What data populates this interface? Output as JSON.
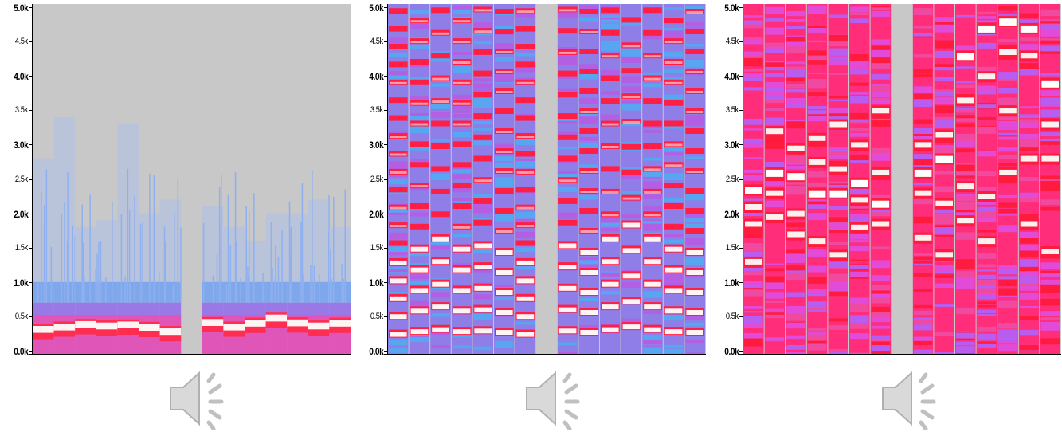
{
  "chart_data": [
    {
      "type": "heatmap",
      "ylim": [
        0,
        5000
      ],
      "y_ticks": [
        "5.0k",
        "4.5k",
        "4.0k",
        "3.5k",
        "3.0k",
        "2.5k",
        "2.0k",
        "1.5k",
        "1.0k",
        "0.5k",
        "0.0k"
      ],
      "major_ticks": [
        "5.0k",
        "4.0k",
        "3.0k",
        "2.0k",
        "1.0k",
        "0.0k"
      ],
      "background": "#c8c8c8",
      "segments": 15,
      "gap_segments": [
        7
      ],
      "energy_top_hz": [
        2800,
        3400,
        1800,
        1900,
        3300,
        2000,
        2200,
        0,
        2100,
        1800,
        1600,
        2000,
        2000,
        2200,
        1800
      ],
      "bands_hz": [
        [
          250,
          350
        ],
        [
          350,
          320
        ],
        [
          420,
          320
        ],
        [
          370,
          330
        ],
        [
          390,
          340
        ],
        [
          350,
          310
        ],
        [
          290,
          250
        ],
        [
          0,
          0
        ],
        [
          380,
          420
        ],
        [
          350,
          320
        ],
        [
          400,
          380
        ],
        [
          470,
          460
        ],
        [
          390,
          400
        ],
        [
          340,
          360
        ],
        [
          400,
          380
        ]
      ]
    },
    {
      "type": "heatmap",
      "ylim": [
        0,
        5000
      ],
      "y_ticks": [
        "5.0k",
        "4.5k",
        "4.0k",
        "3.5k",
        "3.0k",
        "2.5k",
        "2.0k",
        "1.5k",
        "1.0k",
        "0.5k",
        "0.0k"
      ],
      "major_ticks": [
        "5.0k",
        "4.0k",
        "3.0k",
        "2.0k",
        "1.0k",
        "0.0k"
      ],
      "background": "#c8c8c8",
      "segments": 15,
      "gap_segments": [
        7
      ],
      "harmonic_f0_hz": [
        260,
        300,
        330,
        300,
        310,
        290,
        260,
        0,
        310,
        290,
        330,
        370,
        330,
        300,
        290
      ],
      "harmonic_count": 5
    },
    {
      "type": "heatmap",
      "ylim": [
        0,
        5000
      ],
      "y_ticks": [
        "5.0k",
        "4.5k",
        "4.0k",
        "3.5k",
        "3.0k",
        "2.5k",
        "2.0k",
        "1.5k",
        "1.0k",
        "0.5k",
        "0.0k"
      ],
      "major_ticks": [
        "5.0k",
        "4.0k",
        "3.0k",
        "2.0k",
        "1.0k",
        "0.0k"
      ],
      "background": "#c8c8c8",
      "segments": 15,
      "gap_segments": [
        7
      ],
      "peak_hz": [
        [
          2350,
          1300,
          2100,
          1850
        ],
        [
          2600,
          1950,
          3200,
          2300
        ],
        [
          2550,
          2000,
          1700,
          2950
        ],
        [
          2300,
          1600,
          2750,
          3100
        ],
        [
          2300,
          1400,
          2650,
          3300
        ],
        [
          2450,
          1800,
          2200,
          3000
        ],
        [
          2150,
          1850,
          2600,
          3500
        ],
        [
          0,
          0,
          0,
          0
        ],
        [
          2600,
          1650,
          3000,
          2300
        ],
        [
          2800,
          2150,
          1400,
          3150
        ],
        [
          4300,
          3650,
          2400,
          1900
        ],
        [
          4700,
          4000,
          2250,
          1600
        ],
        [
          4800,
          4350,
          3500,
          2600
        ],
        [
          4700,
          4300,
          2800,
          1850
        ],
        [
          3900,
          3300,
          2800,
          1450
        ]
      ]
    }
  ],
  "speakers": [
    "speaker-icon",
    "speaker-icon",
    "speaker-icon"
  ]
}
